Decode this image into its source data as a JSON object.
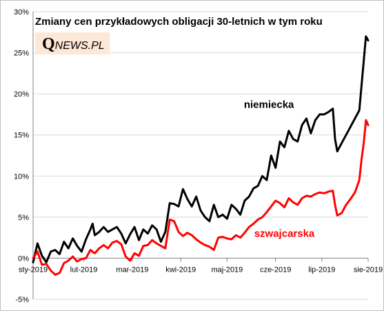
{
  "title": "Zmiany cen przykładowych obligacji 30-letnich w tym roku",
  "logo": {
    "q": "Q",
    "rest": "NEWS.PL"
  },
  "colors": {
    "niemiecka": "#000000",
    "szwajcarska": "#ff0000",
    "grid": "#d9d9d9",
    "axis": "#808080"
  },
  "chart_data": {
    "type": "line",
    "title": "Zmiany cen przykładowych obligacji 30-letnich w tym roku",
    "xlabel": "",
    "ylabel": "",
    "ylim": [
      -5,
      30
    ],
    "yticks": [
      -5,
      0,
      5,
      10,
      15,
      20,
      25,
      30
    ],
    "ytick_labels": [
      "-5%",
      "0%",
      "5%",
      "10%",
      "15%",
      "20%",
      "25%",
      "30%"
    ],
    "xlim": [
      0,
      152
    ],
    "xticks": [
      0,
      23,
      45,
      67,
      88,
      110,
      131,
      152
    ],
    "xtick_labels": [
      "sty-2019",
      "lut-2019",
      "mar-2019",
      "kwi-2019",
      "maj-2019",
      "cze-2019",
      "lip-2019",
      "sie-2019"
    ],
    "grid": true,
    "annotations": [
      {
        "text": "niemiecka",
        "series": "niemiecka",
        "x": 107,
        "y": 18.3
      },
      {
        "text": "szwajcarska",
        "series": "szwajcarska",
        "x": 114,
        "y": 2.6
      }
    ],
    "series": [
      {
        "name": "niemiecka",
        "color": "#000000",
        "points": [
          [
            0,
            -0.5
          ],
          [
            2,
            1.8
          ],
          [
            4,
            0.3
          ],
          [
            6,
            -0.5
          ],
          [
            8,
            0.8
          ],
          [
            10,
            1.0
          ],
          [
            12,
            0.5
          ],
          [
            14,
            2.0
          ],
          [
            16,
            1.2
          ],
          [
            18,
            2.4
          ],
          [
            20,
            1.5
          ],
          [
            22,
            0.8
          ],
          [
            24,
            2.3
          ],
          [
            26,
            3.5
          ],
          [
            27,
            4.2
          ],
          [
            28,
            2.8
          ],
          [
            30,
            3.2
          ],
          [
            32,
            3.8
          ],
          [
            34,
            3.2
          ],
          [
            36,
            3.5
          ],
          [
            38,
            3.8
          ],
          [
            40,
            3.0
          ],
          [
            42,
            1.8
          ],
          [
            44,
            2.9
          ],
          [
            46,
            3.8
          ],
          [
            48,
            2.2
          ],
          [
            50,
            3.5
          ],
          [
            52,
            3.0
          ],
          [
            54,
            4.0
          ],
          [
            56,
            3.5
          ],
          [
            58,
            2.0
          ],
          [
            60,
            3.2
          ],
          [
            62,
            6.7
          ],
          [
            64,
            6.6
          ],
          [
            66,
            6.3
          ],
          [
            68,
            8.4
          ],
          [
            70,
            7.2
          ],
          [
            72,
            6.3
          ],
          [
            74,
            7.5
          ],
          [
            76,
            5.8
          ],
          [
            78,
            5.0
          ],
          [
            80,
            4.5
          ],
          [
            82,
            6.5
          ],
          [
            84,
            5.0
          ],
          [
            86,
            5.3
          ],
          [
            88,
            4.8
          ],
          [
            90,
            6.5
          ],
          [
            92,
            6.0
          ],
          [
            94,
            5.3
          ],
          [
            96,
            7.0
          ],
          [
            98,
            7.5
          ],
          [
            100,
            8.5
          ],
          [
            102,
            8.8
          ],
          [
            104,
            10.0
          ],
          [
            106,
            9.5
          ],
          [
            108,
            12.5
          ],
          [
            110,
            11.0
          ],
          [
            112,
            14.2
          ],
          [
            114,
            13.5
          ],
          [
            116,
            15.5
          ],
          [
            118,
            14.5
          ],
          [
            120,
            14.2
          ],
          [
            122,
            16.2
          ],
          [
            124,
            17.0
          ],
          [
            126,
            15.2
          ],
          [
            128,
            16.8
          ],
          [
            130,
            17.5
          ],
          [
            132,
            17.5
          ],
          [
            134,
            17.8
          ],
          [
            136,
            18.2
          ],
          [
            137,
            14.5
          ],
          [
            138,
            13.0
          ],
          [
            140,
            14.0
          ],
          [
            142,
            15.0
          ],
          [
            144,
            16.0
          ],
          [
            146,
            17.0
          ],
          [
            148,
            18.0
          ],
          [
            149,
            21.0
          ],
          [
            150,
            24.0
          ],
          [
            151,
            27.0
          ],
          [
            152,
            26.5
          ]
        ]
      },
      {
        "name": "szwajcarska",
        "color": "#ff0000",
        "points": [
          [
            0,
            0.0
          ],
          [
            2,
            0.8
          ],
          [
            4,
            -0.8
          ],
          [
            6,
            -0.7
          ],
          [
            8,
            -1.5
          ],
          [
            10,
            -2.0
          ],
          [
            12,
            -1.8
          ],
          [
            14,
            -0.6
          ],
          [
            16,
            -0.3
          ],
          [
            18,
            0.2
          ],
          [
            20,
            -0.4
          ],
          [
            22,
            -0.1
          ],
          [
            24,
            0.0
          ],
          [
            26,
            1.0
          ],
          [
            28,
            0.6
          ],
          [
            30,
            1.2
          ],
          [
            32,
            1.6
          ],
          [
            34,
            1.2
          ],
          [
            36,
            1.9
          ],
          [
            38,
            2.1
          ],
          [
            40,
            1.7
          ],
          [
            42,
            0.2
          ],
          [
            44,
            -0.3
          ],
          [
            46,
            0.6
          ],
          [
            48,
            0.3
          ],
          [
            50,
            1.5
          ],
          [
            52,
            1.6
          ],
          [
            54,
            2.2
          ],
          [
            56,
            1.8
          ],
          [
            58,
            1.5
          ],
          [
            60,
            1.2
          ],
          [
            62,
            4.7
          ],
          [
            64,
            4.5
          ],
          [
            66,
            3.2
          ],
          [
            68,
            2.7
          ],
          [
            70,
            3.1
          ],
          [
            72,
            2.8
          ],
          [
            74,
            2.3
          ],
          [
            76,
            1.9
          ],
          [
            78,
            1.6
          ],
          [
            80,
            1.4
          ],
          [
            82,
            1.0
          ],
          [
            84,
            2.5
          ],
          [
            86,
            2.6
          ],
          [
            88,
            2.4
          ],
          [
            90,
            2.3
          ],
          [
            92,
            2.8
          ],
          [
            94,
            2.5
          ],
          [
            96,
            3.1
          ],
          [
            98,
            3.8
          ],
          [
            100,
            4.2
          ],
          [
            102,
            4.7
          ],
          [
            104,
            5.0
          ],
          [
            106,
            5.6
          ],
          [
            108,
            6.3
          ],
          [
            110,
            7.0
          ],
          [
            112,
            6.7
          ],
          [
            114,
            6.2
          ],
          [
            116,
            7.3
          ],
          [
            118,
            6.8
          ],
          [
            120,
            6.5
          ],
          [
            122,
            7.3
          ],
          [
            124,
            7.6
          ],
          [
            126,
            7.5
          ],
          [
            128,
            7.8
          ],
          [
            130,
            8.0
          ],
          [
            132,
            7.9
          ],
          [
            134,
            8.1
          ],
          [
            136,
            8.2
          ],
          [
            137,
            6.5
          ],
          [
            138,
            5.2
          ],
          [
            140,
            5.5
          ],
          [
            142,
            6.5
          ],
          [
            144,
            7.2
          ],
          [
            146,
            8.0
          ],
          [
            148,
            9.5
          ],
          [
            149,
            12.0
          ],
          [
            150,
            14.0
          ],
          [
            151,
            16.8
          ],
          [
            152,
            16.2
          ]
        ]
      }
    ]
  }
}
